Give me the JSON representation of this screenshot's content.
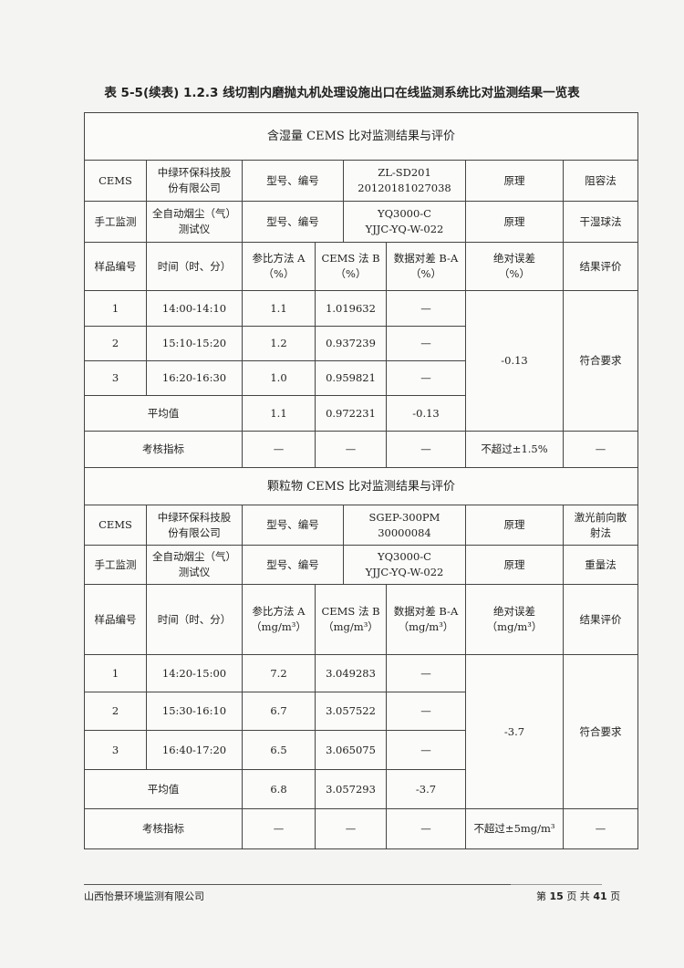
{
  "title": "表 5-5(续表)  1.2.3 线切割内磨抛丸机处理设施出口在线监测系统比对监测结果一览表",
  "sections": [
    {
      "heading": "含湿量 CEMS 比对监测结果与评价",
      "cems": {
        "label": "CEMS",
        "maker": "中绿环保科技股\n份有限公司",
        "model_label": "型号、编号",
        "model": "ZL-SD201\n20120181027038",
        "principle_label": "原理",
        "principle": "阻容法"
      },
      "manual": {
        "label": "手工监测",
        "maker": "全自动烟尘（气）\n测试仪",
        "model_label": "型号、编号",
        "model": "YQ3000-C\nYJJC-YQ-W-022",
        "principle_label": "原理",
        "principle": "干湿球法"
      },
      "headers": [
        "样品编号",
        "时间（时、分）",
        "参比方法 A\n（%）",
        "CEMS 法 B\n（%）",
        "数据对差 B-A\n（%）",
        "绝对误差\n（%）",
        "结果评价"
      ],
      "rows": [
        {
          "no": "1",
          "time": "14:00-14:10",
          "a": "1.1",
          "b": "1.019632",
          "diff": "—"
        },
        {
          "no": "2",
          "time": "15:10-15:20",
          "a": "1.2",
          "b": "0.937239",
          "diff": "—"
        },
        {
          "no": "3",
          "time": "16:20-16:30",
          "a": "1.0",
          "b": "0.959821",
          "diff": "—"
        }
      ],
      "abs_error": "-0.13",
      "result": "符合要求",
      "avg": {
        "label": "平均值",
        "a": "1.1",
        "b": "0.972231",
        "diff": "-0.13"
      },
      "kpi": {
        "label": "考核指标",
        "a": "—",
        "b": "—",
        "diff": "—",
        "limit": "不超过±1.5%",
        "result": "—"
      }
    },
    {
      "heading": "颗粒物 CEMS 比对监测结果与评价",
      "cems": {
        "label": "CEMS",
        "maker": "中绿环保科技股\n份有限公司",
        "model_label": "型号、编号",
        "model": "SGEP-300PM\n30000084",
        "principle_label": "原理",
        "principle": "激光前向散\n射法"
      },
      "manual": {
        "label": "手工监测",
        "maker": "全自动烟尘（气）\n测试仪",
        "model_label": "型号、编号",
        "model": "YQ3000-C\nYJJC-YQ-W-022",
        "principle_label": "原理",
        "principle": "重量法"
      },
      "headers": [
        "样品编号",
        "时间（时、分）",
        "参比方法 A\n（mg/m³）",
        "CEMS 法 B\n（mg/m³）",
        "数据对差 B-A\n（mg/m³）",
        "绝对误差\n（mg/m³）",
        "结果评价"
      ],
      "rows": [
        {
          "no": "1",
          "time": "14:20-15:00",
          "a": "7.2",
          "b": "3.049283",
          "diff": "—"
        },
        {
          "no": "2",
          "time": "15:30-16:10",
          "a": "6.7",
          "b": "3.057522",
          "diff": "—"
        },
        {
          "no": "3",
          "time": "16:40-17:20",
          "a": "6.5",
          "b": "3.065075",
          "diff": "—"
        }
      ],
      "abs_error": "-3.7",
      "result": "符合要求",
      "avg": {
        "label": "平均值",
        "a": "6.8",
        "b": "3.057293",
        "diff": "-3.7"
      },
      "kpi": {
        "label": "考核指标",
        "a": "—",
        "b": "—",
        "diff": "—",
        "limit": "不超过±5mg/m³",
        "result": "—"
      }
    }
  ],
  "footer": {
    "company": "山西怡景环境监测有限公司",
    "page_prefix": "第",
    "page": "15",
    "page_mid": "页 共",
    "total": "41",
    "page_suffix": "页"
  }
}
